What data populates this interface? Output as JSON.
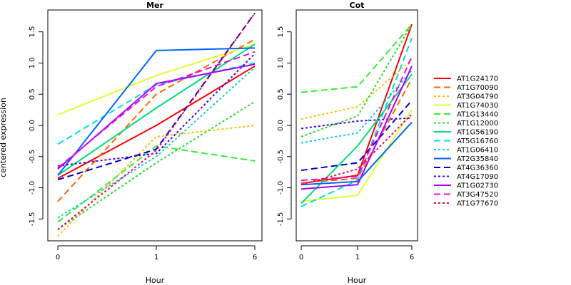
{
  "figure": {
    "ylabel": "centered expression"
  },
  "chart_data": [
    {
      "type": "line",
      "title": "Mer",
      "xlabel": "Hour",
      "x_ticks": [
        "0",
        "1",
        "6"
      ],
      "ylim": [
        -1.85,
        1.85
      ],
      "y_ticks": [
        -1.5,
        -1.0,
        -0.5,
        0.0,
        0.5,
        1.0,
        1.5
      ],
      "y_tick_labels": [
        "-1.5",
        "-1.0",
        "-0.5",
        "0.0",
        "0.5",
        "1.0",
        "1.5"
      ],
      "series": [
        {
          "name": "AT1G24170",
          "color": "#ff0000",
          "dash": "solid",
          "values": [
            -0.85,
            0.0,
            0.95
          ]
        },
        {
          "name": "AT1G70090",
          "color": "#ff6600",
          "dash": "dashed",
          "values": [
            -1.22,
            0.5,
            1.38
          ]
        },
        {
          "name": "AT3G04790",
          "color": "#ffbb00",
          "dash": "dotted",
          "values": [
            -1.77,
            -0.18,
            0.0
          ]
        },
        {
          "name": "AT1G74030",
          "color": "#ddff33",
          "dash": "solid",
          "values": [
            0.17,
            0.8,
            1.3
          ]
        },
        {
          "name": "AT1G13440",
          "color": "#33ee33",
          "dash": "dashed",
          "values": [
            -1.55,
            -0.33,
            -0.57
          ]
        },
        {
          "name": "AT1G12000",
          "color": "#22dd22",
          "dash": "dotted",
          "values": [
            -1.67,
            -0.6,
            0.38
          ]
        },
        {
          "name": "AT1G56190",
          "color": "#00dd77",
          "dash": "solid",
          "values": [
            -0.8,
            0.28,
            1.3
          ]
        },
        {
          "name": "AT5G16760",
          "color": "#00dddd",
          "dash": "dashed",
          "values": [
            -0.3,
            0.65,
            1.0
          ]
        },
        {
          "name": "AT1G06410",
          "color": "#11cccc",
          "dash": "dotted",
          "values": [
            -1.48,
            -0.5,
            0.93
          ]
        },
        {
          "name": "AT2G35840",
          "color": "#0066ff",
          "dash": "solid",
          "values": [
            -0.8,
            1.2,
            1.24
          ]
        },
        {
          "name": "AT4G36360",
          "color": "#0000cc",
          "dash": "dashed",
          "values": [
            -0.87,
            -0.38,
            1.8
          ]
        },
        {
          "name": "AT4G17090",
          "color": "#4400ee",
          "dash": "dotted",
          "values": [
            -0.65,
            -0.45,
            1.15
          ]
        },
        {
          "name": "AT1G02730",
          "color": "#aa00ff",
          "dash": "solid",
          "values": [
            -0.7,
            0.67,
            0.98
          ]
        },
        {
          "name": "AT3G47520",
          "color": "#dd11dd",
          "dash": "dashed",
          "values": [
            -0.68,
            0.62,
            1.18
          ]
        },
        {
          "name": "AT1G77670",
          "color": "#ee0066",
          "dash": "dotted",
          "values": [
            -1.67,
            -0.4,
            1.8
          ]
        }
      ]
    },
    {
      "type": "line",
      "title": "Cot",
      "xlabel": "Hour",
      "x_ticks": [
        "0",
        "1",
        "6"
      ],
      "ylim": [
        -1.85,
        1.85
      ],
      "y_ticks": [
        -1.5,
        -1.0,
        -0.5,
        0.0,
        0.5,
        1.0,
        1.5
      ],
      "y_tick_labels": [
        "-1.5",
        "-1.0",
        "-0.5",
        "0.0",
        "0.5",
        "1.0",
        "1.5"
      ],
      "series": [
        {
          "name": "AT1G24170",
          "color": "#ff0000",
          "dash": "solid",
          "values": [
            -0.93,
            -0.8,
            1.62
          ]
        },
        {
          "name": "AT1G70090",
          "color": "#ff6600",
          "dash": "dashed",
          "values": [
            -0.92,
            -0.85,
            0.75
          ]
        },
        {
          "name": "AT3G04790",
          "color": "#ffbb00",
          "dash": "dotted",
          "values": [
            0.1,
            0.3,
            1.05
          ]
        },
        {
          "name": "AT1G74030",
          "color": "#ddff33",
          "dash": "solid",
          "values": [
            -1.22,
            -1.12,
            0.25
          ]
        },
        {
          "name": "AT1G13440",
          "color": "#33ee33",
          "dash": "dashed",
          "values": [
            0.53,
            0.62,
            1.62
          ]
        },
        {
          "name": "AT1G12000",
          "color": "#22dd22",
          "dash": "dotted",
          "values": [
            -0.18,
            0.15,
            1.62
          ]
        },
        {
          "name": "AT1G56190",
          "color": "#00dd77",
          "dash": "solid",
          "values": [
            -1.25,
            -0.33,
            0.82
          ]
        },
        {
          "name": "AT5G16760",
          "color": "#00dddd",
          "dash": "dashed",
          "values": [
            -1.3,
            -0.88,
            1.4
          ]
        },
        {
          "name": "AT1G06410",
          "color": "#11cccc",
          "dash": "dotted",
          "values": [
            -0.28,
            -0.12,
            0.88
          ]
        },
        {
          "name": "AT2G35840",
          "color": "#0066ff",
          "dash": "solid",
          "values": [
            -0.95,
            -0.9,
            0.05
          ]
        },
        {
          "name": "AT4G36360",
          "color": "#0000cc",
          "dash": "dashed",
          "values": [
            -0.72,
            -0.6,
            0.4
          ]
        },
        {
          "name": "AT4G17090",
          "color": "#4400ee",
          "dash": "dotted",
          "values": [
            -0.05,
            0.07,
            0.12
          ]
        },
        {
          "name": "AT1G02730",
          "color": "#aa00ff",
          "dash": "solid",
          "values": [
            -1.02,
            -0.95,
            0.95
          ]
        },
        {
          "name": "AT3G47520",
          "color": "#dd11dd",
          "dash": "dashed",
          "values": [
            -0.88,
            -0.82,
            1.1
          ]
        },
        {
          "name": "AT1G77670",
          "color": "#ee0066",
          "dash": "dotted",
          "values": [
            -0.95,
            -0.7,
            0.18
          ]
        }
      ]
    }
  ]
}
